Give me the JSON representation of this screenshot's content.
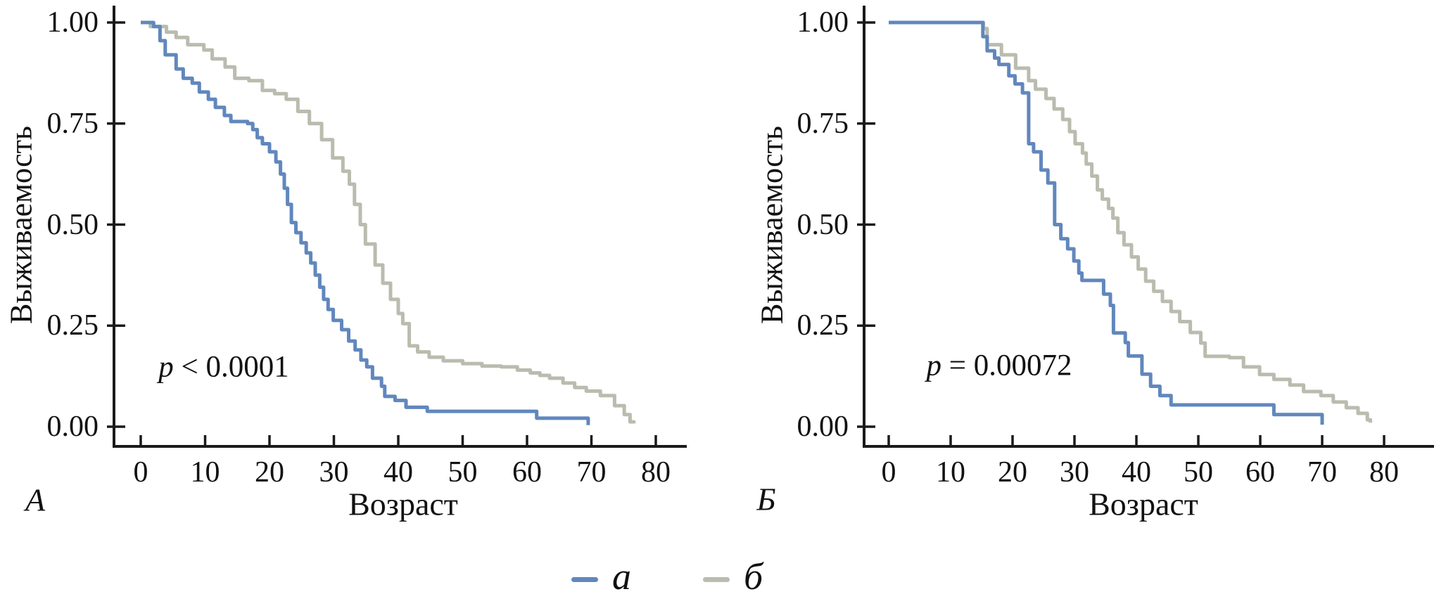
{
  "figure": {
    "background": "#ffffff",
    "axis_color": "#1a1a1a",
    "text_color": "#111111"
  },
  "legend": {
    "items": [
      {
        "label": "а",
        "color": "#6187bd"
      },
      {
        "label": "б",
        "color": "#b9bcae"
      }
    ]
  },
  "chart_data": [
    {
      "type": "line",
      "subtype": "kaplan-meier-step",
      "panel_label": "А",
      "xlabel": "Возраст",
      "ylabel": "Выживаемость",
      "annotation": "p < 0.0001",
      "xlim": [
        0,
        85
      ],
      "ylim": [
        0,
        1
      ],
      "grid": false,
      "x_ticks": [
        0,
        10,
        20,
        30,
        40,
        50,
        60,
        70,
        80
      ],
      "y_ticks": [
        {
          "v": 0.0,
          "label": "0.00"
        },
        {
          "v": 0.25,
          "label": "0.25"
        },
        {
          "v": 0.5,
          "label": "0.50"
        },
        {
          "v": 0.75,
          "label": "0.75"
        },
        {
          "v": 1.0,
          "label": "1.00"
        }
      ],
      "series": [
        {
          "name": "а",
          "color": "#6187bd",
          "points": [
            [
              0,
              1.0
            ],
            [
              2,
              0.99
            ],
            [
              3,
              0.955
            ],
            [
              3.8,
              0.92
            ],
            [
              5.5,
              0.885
            ],
            [
              6.6,
              0.862
            ],
            [
              8,
              0.85
            ],
            [
              9.1,
              0.828
            ],
            [
              10.5,
              0.81
            ],
            [
              11.6,
              0.79
            ],
            [
              13,
              0.77
            ],
            [
              14,
              0.755
            ],
            [
              16.6,
              0.75
            ],
            [
              17.4,
              0.735
            ],
            [
              18.1,
              0.715
            ],
            [
              18.9,
              0.7
            ],
            [
              20,
              0.68
            ],
            [
              21,
              0.655
            ],
            [
              21.7,
              0.625
            ],
            [
              22.3,
              0.59
            ],
            [
              22.8,
              0.55
            ],
            [
              23.4,
              0.505
            ],
            [
              24.1,
              0.48
            ],
            [
              24.9,
              0.455
            ],
            [
              25.7,
              0.43
            ],
            [
              26.4,
              0.405
            ],
            [
              27.1,
              0.375
            ],
            [
              27.8,
              0.345
            ],
            [
              28.4,
              0.315
            ],
            [
              29.1,
              0.29
            ],
            [
              29.9,
              0.263
            ],
            [
              31.2,
              0.24
            ],
            [
              32.3,
              0.212
            ],
            [
              33.3,
              0.19
            ],
            [
              34.2,
              0.165
            ],
            [
              35.1,
              0.148
            ],
            [
              36,
              0.12
            ],
            [
              37.4,
              0.1
            ],
            [
              37.9,
              0.075
            ],
            [
              39.5,
              0.065
            ],
            [
              41.2,
              0.048
            ],
            [
              44.5,
              0.038
            ],
            [
              61.5,
              0.021
            ],
            [
              69.5,
              0.004
            ]
          ]
        },
        {
          "name": "б",
          "color": "#b9bcae",
          "points": [
            [
              0,
              1.0
            ],
            [
              1.5,
              0.99
            ],
            [
              4,
              0.976
            ],
            [
              5.5,
              0.963
            ],
            [
              7.3,
              0.945
            ],
            [
              9.8,
              0.932
            ],
            [
              11.1,
              0.91
            ],
            [
              13.1,
              0.89
            ],
            [
              14.6,
              0.862
            ],
            [
              16.8,
              0.856
            ],
            [
              18.9,
              0.832
            ],
            [
              20.8,
              0.824
            ],
            [
              22.6,
              0.81
            ],
            [
              24.4,
              0.78
            ],
            [
              26.2,
              0.75
            ],
            [
              28.1,
              0.71
            ],
            [
              29.8,
              0.665
            ],
            [
              31.4,
              0.632
            ],
            [
              32.4,
              0.6
            ],
            [
              33.2,
              0.55
            ],
            [
              34.1,
              0.5
            ],
            [
              34.9,
              0.452
            ],
            [
              36.4,
              0.4
            ],
            [
              37.6,
              0.355
            ],
            [
              38.8,
              0.315
            ],
            [
              40,
              0.28
            ],
            [
              40.7,
              0.255
            ],
            [
              41.7,
              0.2
            ],
            [
              43,
              0.185
            ],
            [
              44.8,
              0.172
            ],
            [
              47,
              0.163
            ],
            [
              50,
              0.156
            ],
            [
              53,
              0.15
            ],
            [
              56,
              0.148
            ],
            [
              58.5,
              0.14
            ],
            [
              60.5,
              0.133
            ],
            [
              62,
              0.127
            ],
            [
              63.5,
              0.12
            ],
            [
              65.6,
              0.108
            ],
            [
              67.4,
              0.097
            ],
            [
              69.2,
              0.088
            ],
            [
              71.4,
              0.077
            ],
            [
              73.6,
              0.052
            ],
            [
              75.1,
              0.03
            ],
            [
              76,
              0.012
            ],
            [
              76.6,
              0.008
            ]
          ]
        }
      ]
    },
    {
      "type": "line",
      "subtype": "kaplan-meier-step",
      "panel_label": "Б",
      "xlabel": "Возраст",
      "ylabel": "Выживаемость",
      "annotation": "p = 0.00072",
      "xlim": [
        0,
        85
      ],
      "ylim": [
        0,
        1
      ],
      "grid": false,
      "x_ticks": [
        0,
        10,
        20,
        30,
        40,
        50,
        60,
        70,
        80
      ],
      "y_ticks": [
        {
          "v": 0.0,
          "label": "0.00"
        },
        {
          "v": 0.25,
          "label": "0.25"
        },
        {
          "v": 0.5,
          "label": "0.50"
        },
        {
          "v": 0.75,
          "label": "0.75"
        },
        {
          "v": 1.0,
          "label": "1.00"
        }
      ],
      "series": [
        {
          "name": "а",
          "color": "#6187bd",
          "points": [
            [
              0,
              1.0
            ],
            [
              15.2,
              0.965
            ],
            [
              15.9,
              0.93
            ],
            [
              17.1,
              0.912
            ],
            [
              17.8,
              0.896
            ],
            [
              19.4,
              0.868
            ],
            [
              20.4,
              0.848
            ],
            [
              21.6,
              0.826
            ],
            [
              22.6,
              0.7
            ],
            [
              23.4,
              0.68
            ],
            [
              24.6,
              0.635
            ],
            [
              25.7,
              0.603
            ],
            [
              26.8,
              0.5
            ],
            [
              27.8,
              0.465
            ],
            [
              28.9,
              0.44
            ],
            [
              29.9,
              0.41
            ],
            [
              30.7,
              0.38
            ],
            [
              31.2,
              0.362
            ],
            [
              34.7,
              0.328
            ],
            [
              35.8,
              0.3
            ],
            [
              36.3,
              0.232
            ],
            [
              38.2,
              0.208
            ],
            [
              38.7,
              0.175
            ],
            [
              40.9,
              0.13
            ],
            [
              42.3,
              0.1
            ],
            [
              43.8,
              0.077
            ],
            [
              45.6,
              0.054
            ],
            [
              62.2,
              0.03
            ],
            [
              70,
              0.005
            ]
          ]
        },
        {
          "name": "б",
          "color": "#b9bcae",
          "points": [
            [
              0,
              1.0
            ],
            [
              15.3,
              0.985
            ],
            [
              15.9,
              0.945
            ],
            [
              18.2,
              0.92
            ],
            [
              20.5,
              0.887
            ],
            [
              22.6,
              0.856
            ],
            [
              23.7,
              0.835
            ],
            [
              25.4,
              0.812
            ],
            [
              26.7,
              0.786
            ],
            [
              28.1,
              0.76
            ],
            [
              29.2,
              0.73
            ],
            [
              30.1,
              0.7
            ],
            [
              31.3,
              0.677
            ],
            [
              31.9,
              0.65
            ],
            [
              32.8,
              0.62
            ],
            [
              33.7,
              0.586
            ],
            [
              34.5,
              0.563
            ],
            [
              35.5,
              0.54
            ],
            [
              36.2,
              0.516
            ],
            [
              37,
              0.48
            ],
            [
              38,
              0.45
            ],
            [
              39.2,
              0.42
            ],
            [
              40.3,
              0.39
            ],
            [
              41.5,
              0.36
            ],
            [
              42.8,
              0.335
            ],
            [
              44.2,
              0.31
            ],
            [
              45.6,
              0.285
            ],
            [
              47,
              0.26
            ],
            [
              48.7,
              0.233
            ],
            [
              50.4,
              0.207
            ],
            [
              51.1,
              0.174
            ],
            [
              55,
              0.171
            ],
            [
              57.3,
              0.148
            ],
            [
              59.9,
              0.129
            ],
            [
              62.2,
              0.117
            ],
            [
              64.8,
              0.103
            ],
            [
              67,
              0.087
            ],
            [
              69.8,
              0.077
            ],
            [
              71.8,
              0.061
            ],
            [
              73.9,
              0.047
            ],
            [
              75.8,
              0.033
            ],
            [
              77.3,
              0.017
            ],
            [
              77.8,
              0.01
            ]
          ]
        }
      ]
    }
  ]
}
